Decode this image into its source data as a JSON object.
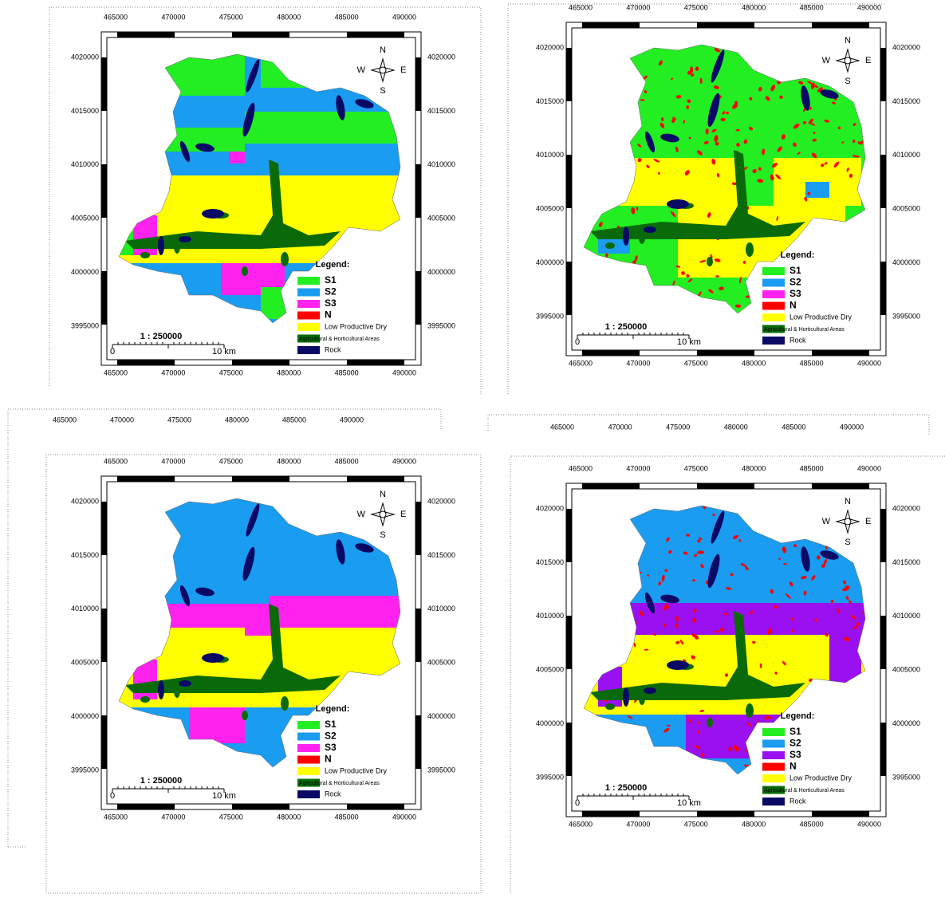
{
  "maps": [
    {
      "x_labels": [
        "465000",
        "470000",
        "475000",
        "480000",
        "485000",
        "490000"
      ],
      "y_labels": [
        "4020000",
        "4015000",
        "4010000",
        "4005000",
        "4000000",
        "3995000"
      ],
      "compass": {
        "n": "N",
        "e": "E",
        "s": "S",
        "w": "W"
      },
      "legend": {
        "title": "Legend:",
        "items": [
          {
            "label": "S1",
            "color": "#22ee22"
          },
          {
            "label": "S2",
            "color": "#1a9cf0"
          },
          {
            "label": "S3",
            "color": "#ff22ee"
          },
          {
            "label": "N",
            "color": "#ff0000"
          },
          {
            "label": "Low Productive Dry",
            "color": "#ffff00"
          },
          {
            "label": "Agricultural & Horticultural Areas",
            "color": "#0a6a0a"
          },
          {
            "label": "Rock",
            "color": "#0a0a66"
          }
        ]
      },
      "scale": {
        "ratio": "1 : 250000",
        "start": "0",
        "end": "10 km"
      }
    },
    {
      "x_labels": [
        "465000",
        "470000",
        "475000",
        "480000",
        "485000",
        "490000"
      ],
      "y_labels": [
        "4020000",
        "4015000",
        "4010000",
        "4005000",
        "4000000",
        "3995000"
      ],
      "compass": {
        "n": "N",
        "e": "E",
        "s": "S",
        "w": "W"
      },
      "legend": {
        "title": "Legend:",
        "items": [
          {
            "label": "S1",
            "color": "#22ee22"
          },
          {
            "label": "S2",
            "color": "#1a9cf0"
          },
          {
            "label": "S3",
            "color": "#ff22ee"
          },
          {
            "label": "N",
            "color": "#ff0000"
          },
          {
            "label": "Low Productive Dry",
            "color": "#ffff00"
          },
          {
            "label": "Agricultural & Horticultural Areas",
            "color": "#0a6a0a"
          },
          {
            "label": "Rock",
            "color": "#0a0a66"
          }
        ]
      },
      "scale": {
        "ratio": "1 : 250000",
        "start": "0",
        "end": "10 km"
      }
    },
    {
      "x_labels": [
        "465000",
        "470000",
        "475000",
        "480000",
        "485000",
        "490000"
      ],
      "y_labels": [
        "4020000",
        "4015000",
        "4010000",
        "4005000",
        "4000000",
        "3995000"
      ],
      "compass": {
        "n": "N",
        "e": "E",
        "s": "S",
        "w": "W"
      },
      "legend": {
        "title": "Legend:",
        "items": [
          {
            "label": "S1",
            "color": "#22ee22"
          },
          {
            "label": "S2",
            "color": "#1a9cf0"
          },
          {
            "label": "S3",
            "color": "#ff22ee"
          },
          {
            "label": "N",
            "color": "#ff0000"
          },
          {
            "label": "Low Productive Dry",
            "color": "#ffff00"
          },
          {
            "label": "Agricultural & Horticultural Areas",
            "color": "#0a6a0a"
          },
          {
            "label": "Rock",
            "color": "#0a0a66"
          }
        ]
      },
      "scale": {
        "ratio": "1 : 250000",
        "start": "0",
        "end": "10 km"
      }
    },
    {
      "x_labels": [
        "465000",
        "470000",
        "475000",
        "480000",
        "485000",
        "490000"
      ],
      "y_labels": [
        "4020000",
        "4015000",
        "4010000",
        "4005000",
        "4000000",
        "3995000"
      ],
      "compass": {
        "n": "N",
        "e": "E",
        "s": "S",
        "w": "W"
      },
      "legend": {
        "title": "Legend:",
        "items": [
          {
            "label": "S1",
            "color": "#22ee22"
          },
          {
            "label": "S2",
            "color": "#1a9cf0"
          },
          {
            "label": "S3",
            "color": "#9a10f0"
          },
          {
            "label": "N",
            "color": "#ff0000"
          },
          {
            "label": "Low Productive Dry",
            "color": "#ffff00"
          },
          {
            "label": "Agricultural & Horticultural Areas",
            "color": "#0a6a0a"
          },
          {
            "label": "Rock",
            "color": "#0a0a66"
          }
        ]
      },
      "scale": {
        "ratio": "1 : 250000",
        "start": "0",
        "end": "10 km"
      }
    }
  ],
  "stray_axes": [
    {
      "labels": [
        "465000",
        "470000",
        "475000",
        "480000",
        "485000",
        "490000"
      ]
    },
    {
      "labels": [
        "465000",
        "470000",
        "475000",
        "480000",
        "485000",
        "490000"
      ]
    }
  ]
}
